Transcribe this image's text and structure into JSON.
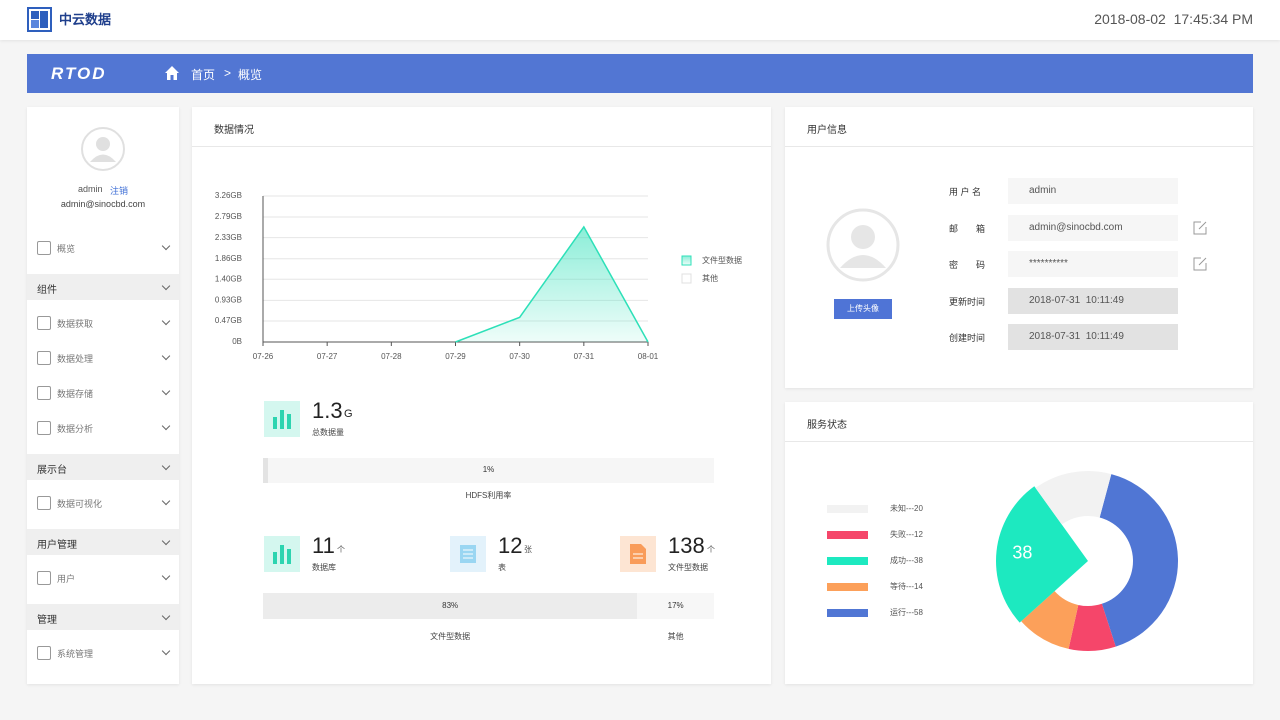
{
  "header": {
    "logo": "中云数据",
    "datetime": "2018-08-02  17:45:34 PM"
  },
  "nav": {
    "brand": "RTOD",
    "home": "首页",
    "separator": ">",
    "current": "概览"
  },
  "sidebar": {
    "username": "admin",
    "logout": "注销",
    "email": "admin@sinocbd.com",
    "menu": [
      {
        "label": "概览",
        "group": false
      },
      {
        "label": "组件",
        "group": true
      },
      {
        "label": "数据获取",
        "group": false
      },
      {
        "label": "数据处理",
        "group": false
      },
      {
        "label": "数据存储",
        "group": false
      },
      {
        "label": "数据分析",
        "group": false
      },
      {
        "label": "展示台",
        "group": true
      },
      {
        "label": "数据可视化",
        "group": false
      },
      {
        "label": "用户管理",
        "group": true
      },
      {
        "label": "用户",
        "group": false
      },
      {
        "label": "管理",
        "group": true
      },
      {
        "label": "系统管理",
        "group": false
      }
    ]
  },
  "data_panel": {
    "title": "数据情况",
    "chart": {
      "type": "area",
      "categories": [
        "07-26",
        "07-27",
        "07-28",
        "07-29",
        "07-30",
        "07-31",
        "08-01"
      ],
      "series": [
        {
          "name": "文件型数据",
          "color": "#2de0b8",
          "values": [
            null,
            null,
            null,
            0,
            0.55,
            2.57,
            0
          ]
        },
        {
          "name": "其他",
          "color": "#e0e0e0",
          "values": [
            null,
            null,
            null,
            null,
            null,
            null,
            null
          ]
        }
      ],
      "ylim": [
        0,
        3.26
      ],
      "yticks": [
        {
          "value": 0,
          "label": "0B"
        },
        {
          "value": 0.47,
          "label": "0.47GB"
        },
        {
          "value": 0.93,
          "label": "0.93GB"
        },
        {
          "value": 1.4,
          "label": "1.40GB"
        },
        {
          "value": 1.86,
          "label": "1.86GB"
        },
        {
          "value": 2.33,
          "label": "2.33GB"
        },
        {
          "value": 2.79,
          "label": "2.79GB"
        },
        {
          "value": 3.26,
          "label": "3.26GB"
        }
      ],
      "grid": true,
      "legend": "right"
    },
    "total": {
      "value": 1.3,
      "unit": "G",
      "label": "总数据量"
    },
    "usage": {
      "value": 1,
      "value_label": "1%",
      "label": "HDFS利用率"
    },
    "counts": [
      {
        "value": 11,
        "unit": "个",
        "label": "数据库"
      },
      {
        "value": 12,
        "unit": "张",
        "label": "表"
      },
      {
        "value": 138,
        "unit": "个",
        "label": "文件型数据"
      }
    ],
    "split": {
      "categories": [
        "文件型数据",
        "其他"
      ],
      "values": [
        83,
        17
      ],
      "value_labels": [
        "83%",
        "17%"
      ]
    }
  },
  "user_panel": {
    "title": "用户信息",
    "upload": "上传头像",
    "fields": [
      {
        "label": "用 户 名",
        "value": "admin",
        "editable": false,
        "readonly": false
      },
      {
        "label": "邮　　箱",
        "value": "admin@sinocbd.com",
        "editable": true,
        "readonly": false
      },
      {
        "label": "密　　码",
        "value": "**********",
        "editable": true,
        "readonly": false
      },
      {
        "label": "更新时间",
        "value": "2018-07-31  10:11:49",
        "editable": false,
        "readonly": true
      },
      {
        "label": "创建时间",
        "value": "2018-07-31  10:11:49",
        "editable": false,
        "readonly": true
      }
    ]
  },
  "service_panel": {
    "title": "服务状态",
    "chart": {
      "type": "donut",
      "categories": [
        "未知---20",
        "失败---12",
        "成功---38",
        "等待---14",
        "运行---58"
      ],
      "values": [
        20,
        12,
        38,
        14,
        58
      ],
      "colors": [
        "#f2f2f2",
        "#f5466a",
        "#1de9c0",
        "#fca05a",
        "#5076d4"
      ],
      "highlight": 2
    }
  }
}
